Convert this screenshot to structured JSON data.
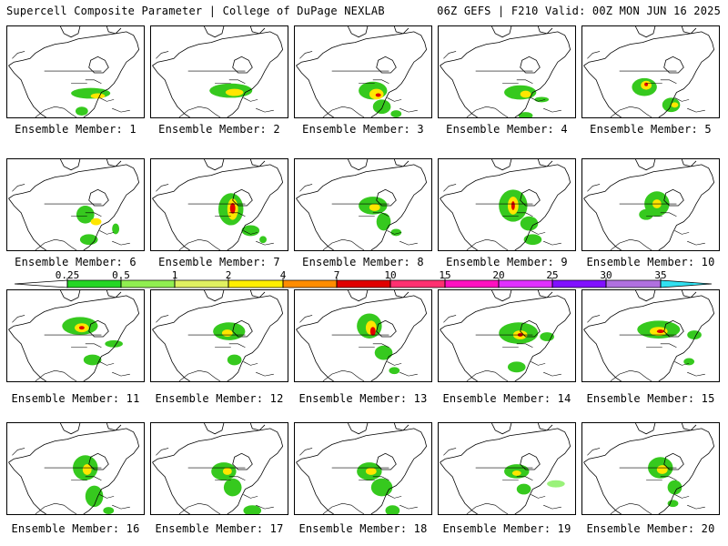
{
  "header": {
    "left": "Supercell Composite Parameter | College of DuPage NEXLAB",
    "right": "06Z GEFS | F210 Valid: 00Z MON JUN 16 2025"
  },
  "label_prefix": "Ensemble Member: ",
  "members": [
    {
      "id": "1",
      "blobs": [
        [
          92,
          75,
          22,
          6,
          1
        ],
        [
          100,
          78,
          8,
          3,
          2
        ],
        [
          82,
          95,
          7,
          5,
          1
        ],
        [
          90,
          118,
          10,
          3,
          1
        ]
      ]
    },
    {
      "id": "2",
      "blobs": [
        [
          88,
          72,
          24,
          8,
          1
        ],
        [
          92,
          74,
          10,
          4,
          2
        ],
        [
          100,
          108,
          9,
          6,
          1
        ],
        [
          110,
          122,
          8,
          3,
          1
        ]
      ]
    },
    {
      "id": "3",
      "blobs": [
        [
          86,
          72,
          16,
          10,
          1
        ],
        [
          90,
          76,
          8,
          6,
          2
        ],
        [
          92,
          77,
          3,
          2,
          3
        ],
        [
          96,
          90,
          10,
          8,
          1
        ],
        [
          112,
          98,
          6,
          4,
          1
        ]
      ]
    },
    {
      "id": "4",
      "blobs": [
        [
          90,
          74,
          18,
          8,
          1
        ],
        [
          96,
          76,
          6,
          4,
          2
        ],
        [
          114,
          82,
          8,
          3,
          1
        ],
        [
          96,
          100,
          8,
          4,
          1
        ]
      ]
    },
    {
      "id": "5",
      "blobs": [
        [
          68,
          68,
          14,
          10,
          1
        ],
        [
          70,
          66,
          6,
          5,
          2
        ],
        [
          70,
          65,
          2,
          2,
          3
        ],
        [
          98,
          88,
          10,
          8,
          1
        ],
        [
          102,
          88,
          4,
          3,
          2
        ],
        [
          112,
          115,
          10,
          6,
          1
        ]
      ]
    },
    {
      "id": "6",
      "blobs": [
        [
          86,
          62,
          10,
          10,
          1
        ],
        [
          98,
          70,
          6,
          4,
          2
        ],
        [
          90,
          90,
          10,
          6,
          1
        ],
        [
          120,
          78,
          4,
          6,
          1
        ]
      ]
    },
    {
      "id": "7",
      "blobs": [
        [
          88,
          56,
          14,
          18,
          1
        ],
        [
          90,
          56,
          6,
          12,
          2
        ],
        [
          90,
          55,
          3,
          6,
          3
        ],
        [
          110,
          80,
          10,
          6,
          1
        ],
        [
          124,
          90,
          4,
          4,
          1
        ]
      ]
    },
    {
      "id": "8",
      "blobs": [
        [
          86,
          52,
          16,
          10,
          1
        ],
        [
          88,
          54,
          6,
          4,
          2
        ],
        [
          98,
          70,
          8,
          10,
          1
        ],
        [
          112,
          82,
          6,
          4,
          1
        ]
      ]
    },
    {
      "id": "9",
      "blobs": [
        [
          82,
          52,
          16,
          18,
          1
        ],
        [
          82,
          52,
          6,
          10,
          2
        ],
        [
          82,
          52,
          2,
          5,
          3
        ],
        [
          100,
          72,
          10,
          8,
          1
        ],
        [
          104,
          90,
          10,
          6,
          1
        ]
      ]
    },
    {
      "id": "10",
      "blobs": [
        [
          82,
          50,
          14,
          14,
          1
        ],
        [
          82,
          50,
          5,
          5,
          2
        ],
        [
          70,
          62,
          8,
          6,
          1
        ]
      ]
    },
    {
      "id": "11",
      "blobs": [
        [
          80,
          40,
          20,
          10,
          1
        ],
        [
          82,
          42,
          8,
          5,
          2
        ],
        [
          82,
          42,
          3,
          2,
          3
        ],
        [
          118,
          60,
          10,
          4,
          1
        ],
        [
          94,
          78,
          10,
          6,
          1
        ]
      ]
    },
    {
      "id": "12",
      "blobs": [
        [
          86,
          46,
          18,
          10,
          1
        ],
        [
          84,
          48,
          6,
          4,
          2
        ],
        [
          92,
          78,
          8,
          6,
          1
        ]
      ]
    },
    {
      "id": "13",
      "blobs": [
        [
          82,
          40,
          14,
          14,
          1
        ],
        [
          84,
          42,
          6,
          8,
          2
        ],
        [
          86,
          46,
          3,
          5,
          3
        ],
        [
          98,
          70,
          10,
          8,
          1
        ],
        [
          110,
          90,
          6,
          4,
          1
        ]
      ]
    },
    {
      "id": "14",
      "blobs": [
        [
          88,
          48,
          22,
          12,
          1
        ],
        [
          90,
          50,
          8,
          5,
          2
        ],
        [
          90,
          50,
          3,
          2,
          3
        ],
        [
          120,
          52,
          8,
          5,
          1
        ],
        [
          86,
          86,
          10,
          6,
          1
        ]
      ]
    },
    {
      "id": "15",
      "blobs": [
        [
          84,
          44,
          24,
          10,
          1
        ],
        [
          84,
          46,
          10,
          5,
          2
        ],
        [
          86,
          46,
          4,
          2,
          3
        ],
        [
          124,
          50,
          8,
          5,
          1
        ],
        [
          118,
          80,
          6,
          4,
          1
        ]
      ]
    },
    {
      "id": "16",
      "blobs": [
        [
          86,
          50,
          14,
          14,
          1
        ],
        [
          88,
          52,
          5,
          6,
          2
        ],
        [
          96,
          82,
          10,
          12,
          1
        ],
        [
          112,
          98,
          6,
          4,
          1
        ]
      ]
    },
    {
      "id": "17",
      "blobs": [
        [
          80,
          54,
          14,
          10,
          1
        ],
        [
          84,
          54,
          5,
          4,
          2
        ],
        [
          90,
          72,
          10,
          10,
          1
        ],
        [
          112,
          98,
          10,
          6,
          1
        ]
      ]
    },
    {
      "id": "18",
      "blobs": [
        [
          82,
          54,
          14,
          10,
          1
        ],
        [
          84,
          54,
          6,
          4,
          2
        ],
        [
          96,
          72,
          12,
          10,
          1
        ],
        [
          108,
          98,
          8,
          6,
          1
        ]
      ]
    },
    {
      "id": "19",
      "blobs": [
        [
          86,
          54,
          14,
          8,
          1
        ],
        [
          86,
          56,
          5,
          3,
          2
        ],
        [
          94,
          74,
          8,
          6,
          1
        ],
        [
          130,
          68,
          10,
          4,
          0
        ]
      ]
    },
    {
      "id": "20",
      "blobs": [
        [
          86,
          50,
          14,
          12,
          1
        ],
        [
          88,
          52,
          6,
          5,
          2
        ],
        [
          102,
          72,
          8,
          8,
          1
        ],
        [
          100,
          90,
          6,
          4,
          1
        ]
      ]
    }
  ],
  "colorbar": {
    "levels": [
      "0.25",
      "0.5",
      "1",
      "2",
      "4",
      "7",
      "10",
      "15",
      "20",
      "25",
      "30",
      "35"
    ],
    "colors": [
      "#c8c8c8",
      "#24d724",
      "#90ee50",
      "#e0f060",
      "#ffee00",
      "#ff8c00",
      "#e00000",
      "#ff3070",
      "#ff10c0",
      "#e030ff",
      "#8010ff",
      "#b070e0",
      "#30e0f0"
    ]
  },
  "palette": {
    "light": "#9af27a",
    "green": "#36c91e",
    "yellow": "#ffe600",
    "red": "#e10000",
    "gray": "#c8c8c8"
  }
}
